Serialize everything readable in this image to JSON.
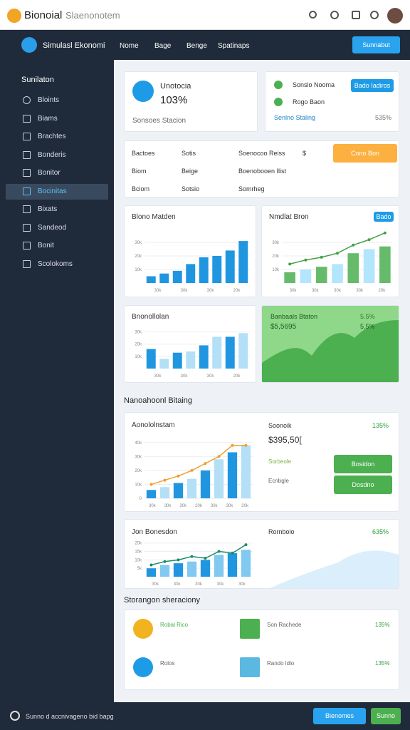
{
  "topbar": {
    "brand": "Bionoial",
    "search": "Slaenonotem"
  },
  "navbar": {
    "title": "Simulasl Ekonomi",
    "menu": [
      "Nome",
      "Bage",
      "Benge",
      "Spatinaps"
    ],
    "button": "Sunnabut"
  },
  "sidebar": {
    "header": "Sunilaton",
    "items": [
      "Bloints",
      "Biams",
      "Brachtes",
      "Bonderis",
      "Bonitor",
      "Bocinitas",
      "Bixats",
      "Sandeod",
      "Bonit",
      "Scolokoms"
    ]
  },
  "summary": {
    "title": "Unotocia",
    "value": "103%",
    "select": "Sonsoes Stacion"
  },
  "status": {
    "rows": [
      "Sonslo Nooma",
      "Rogo Baon"
    ],
    "button": "Bado Iadiros",
    "footer": "Senlno Staling",
    "footer_value": "535%"
  },
  "table": {
    "rows": [
      [
        "Bactoes",
        "Sotis",
        "Soenocoo Reiss",
        "$"
      ],
      [
        "Biom",
        "Beige",
        "Boenobooen Ilist",
        ""
      ],
      [
        "Bciom",
        "Sotsio",
        "Somrheg",
        ""
      ]
    ],
    "button": "Cono Bon"
  },
  "charts": [
    {
      "title": "Blono Matden",
      "bars": [
        5,
        7,
        9,
        14,
        19,
        20,
        24,
        31
      ],
      "ylim": [
        0,
        40
      ],
      "yticks": [
        {
          "value": 10,
          "label": "10k"
        },
        {
          "value": 20,
          "label": "20k"
        },
        {
          "value": 30,
          "label": "30k"
        }
      ],
      "xlabels": [
        "30k",
        "30k",
        "30k",
        "20k"
      ],
      "color": "#2196e0"
    },
    {
      "title": "Nmdlat Bron",
      "badge": "Bado",
      "bars": [
        8,
        10,
        12,
        14,
        22,
        25,
        27
      ],
      "line": [
        14,
        17,
        19,
        22,
        28,
        32,
        37
      ],
      "ylim": [
        0,
        40
      ],
      "yticks": [
        {
          "value": 10,
          "label": "10k"
        },
        {
          "value": 20,
          "label": "20k"
        },
        {
          "value": 30,
          "label": "30k"
        }
      ],
      "xlabels": [
        "30k",
        "30k",
        "30k",
        "30k",
        "20k"
      ],
      "color": "#66bb6a",
      "color2": "#b3e5fc",
      "linecolor": "#43a047"
    },
    {
      "title": "Bnonollolan",
      "bars": [
        16,
        8,
        13,
        14,
        19,
        26,
        26,
        29
      ],
      "ylim": [
        0,
        35
      ],
      "yticks": [
        {
          "value": 10,
          "label": "10k"
        },
        {
          "value": 20,
          "label": "20k"
        },
        {
          "value": 30,
          "label": "30k"
        }
      ],
      "xlabels": [
        "30k",
        "30k",
        "30k",
        "20k"
      ],
      "color": "#2196e0",
      "color2": "#b3e0f7"
    },
    {
      "title": "Aonololnstam",
      "bars": [
        6,
        8,
        11,
        14,
        20,
        28,
        33,
        38
      ],
      "line": [
        10,
        13,
        16,
        20,
        25,
        30,
        38,
        38
      ],
      "ylim": [
        0,
        45
      ],
      "yticks": [
        {
          "value": 0,
          "label": "0"
        },
        {
          "value": 10,
          "label": "10k"
        },
        {
          "value": 20,
          "label": "20k"
        },
        {
          "value": 30,
          "label": "30k"
        },
        {
          "value": 40,
          "label": "40k"
        }
      ],
      "xlabels": [
        "30k",
        "30k",
        "30k",
        "20k",
        "30k",
        "30k",
        "20k"
      ],
      "color": "#2196e0",
      "color2": "#b3e0f7",
      "linecolor": "#f0a030"
    },
    {
      "title": "Jon Bonesdon",
      "bars": [
        5,
        7,
        8,
        9,
        10,
        13,
        14,
        16
      ],
      "line": [
        7,
        9,
        10,
        12,
        11,
        15,
        14,
        19
      ],
      "ylim": [
        0,
        22
      ],
      "yticks": [
        {
          "value": 5,
          "label": "5k"
        },
        {
          "value": 10,
          "label": "10k"
        },
        {
          "value": 15,
          "label": "15k"
        },
        {
          "value": 20,
          "label": "20k"
        }
      ],
      "xlabels": [
        "30k",
        "30k",
        "30k",
        "30k",
        "30k"
      ],
      "color": "#2196e0",
      "color2": "#81c9f0",
      "linecolor": "#1e8a6a"
    }
  ],
  "green_card": {
    "title": "Banbaals Btaton",
    "value": "$5,5695",
    "change": "5.5%",
    "badge": "5.5%"
  },
  "section1": "Nanoahoonl Bitaing",
  "detail": {
    "label": "Soonoik",
    "amount": "$395,50[",
    "change": "135%",
    "sub1": "Sorbeole",
    "sub2": "Ecnbgle",
    "btn1": "Bosidon",
    "btn2": "Dosdno"
  },
  "detail2": {
    "label": "Rornbolo",
    "change": "635%"
  },
  "section2": "Storangon sheraciony",
  "items": [
    {
      "label": "Robal Rico",
      "value": ""
    },
    {
      "label": "Son Rachede",
      "value": "135%"
    },
    {
      "label": "Rolos",
      "value": ""
    },
    {
      "label": "Rando ldio",
      "value": "135%"
    }
  ],
  "footer": {
    "text": "Sunno d accnivageno bid bapg",
    "btn1": "Bienomes",
    "btn2": "Sunno"
  }
}
